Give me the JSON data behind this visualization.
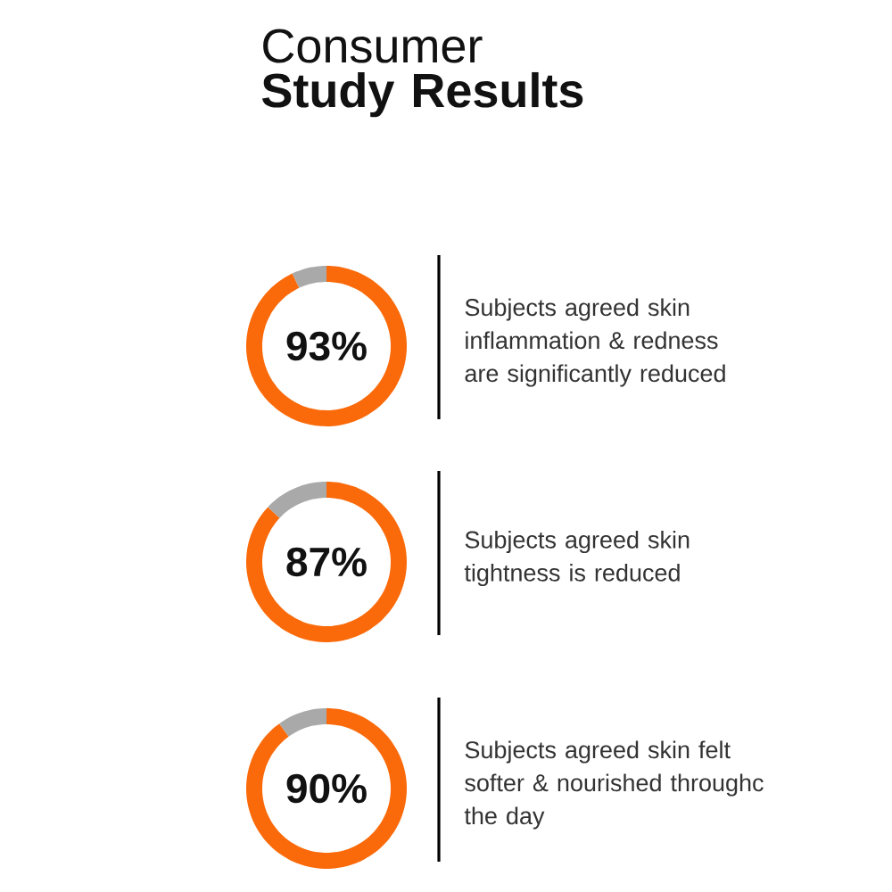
{
  "chart_data": [
    {
      "type": "donut",
      "title": "Consumer **Study Results**",
      "categories": [
        null,
        null
      ],
      "values": [
        93,
        7
      ],
      "colors": [
        "#fa6a0a",
        "#a9a9a9"
      ],
      "value_labels": [
        "93%",
        null
      ],
      "annotations": [
        "Subjects agreed skin inflammation & redness are significantly reduced"
      ]
    },
    {
      "type": "donut",
      "categories": [
        null,
        null
      ],
      "values": [
        87,
        13
      ],
      "colors": [
        "#fa6a0a",
        "#a9a9a9"
      ],
      "value_labels": [
        "87%",
        null
      ],
      "annotations": [
        "Subjects agreed skin tightness is reduced"
      ]
    },
    {
      "type": "donut",
      "categories": [
        null,
        null
      ],
      "values": [
        90,
        10
      ],
      "colors": [
        "#fa6a0a",
        "#a9a9a9"
      ],
      "value_labels": [
        "90%",
        null
      ],
      "annotations": [
        "Subjects agreed skin felt softer & nourished throughc the day"
      ]
    }
  ]
}
